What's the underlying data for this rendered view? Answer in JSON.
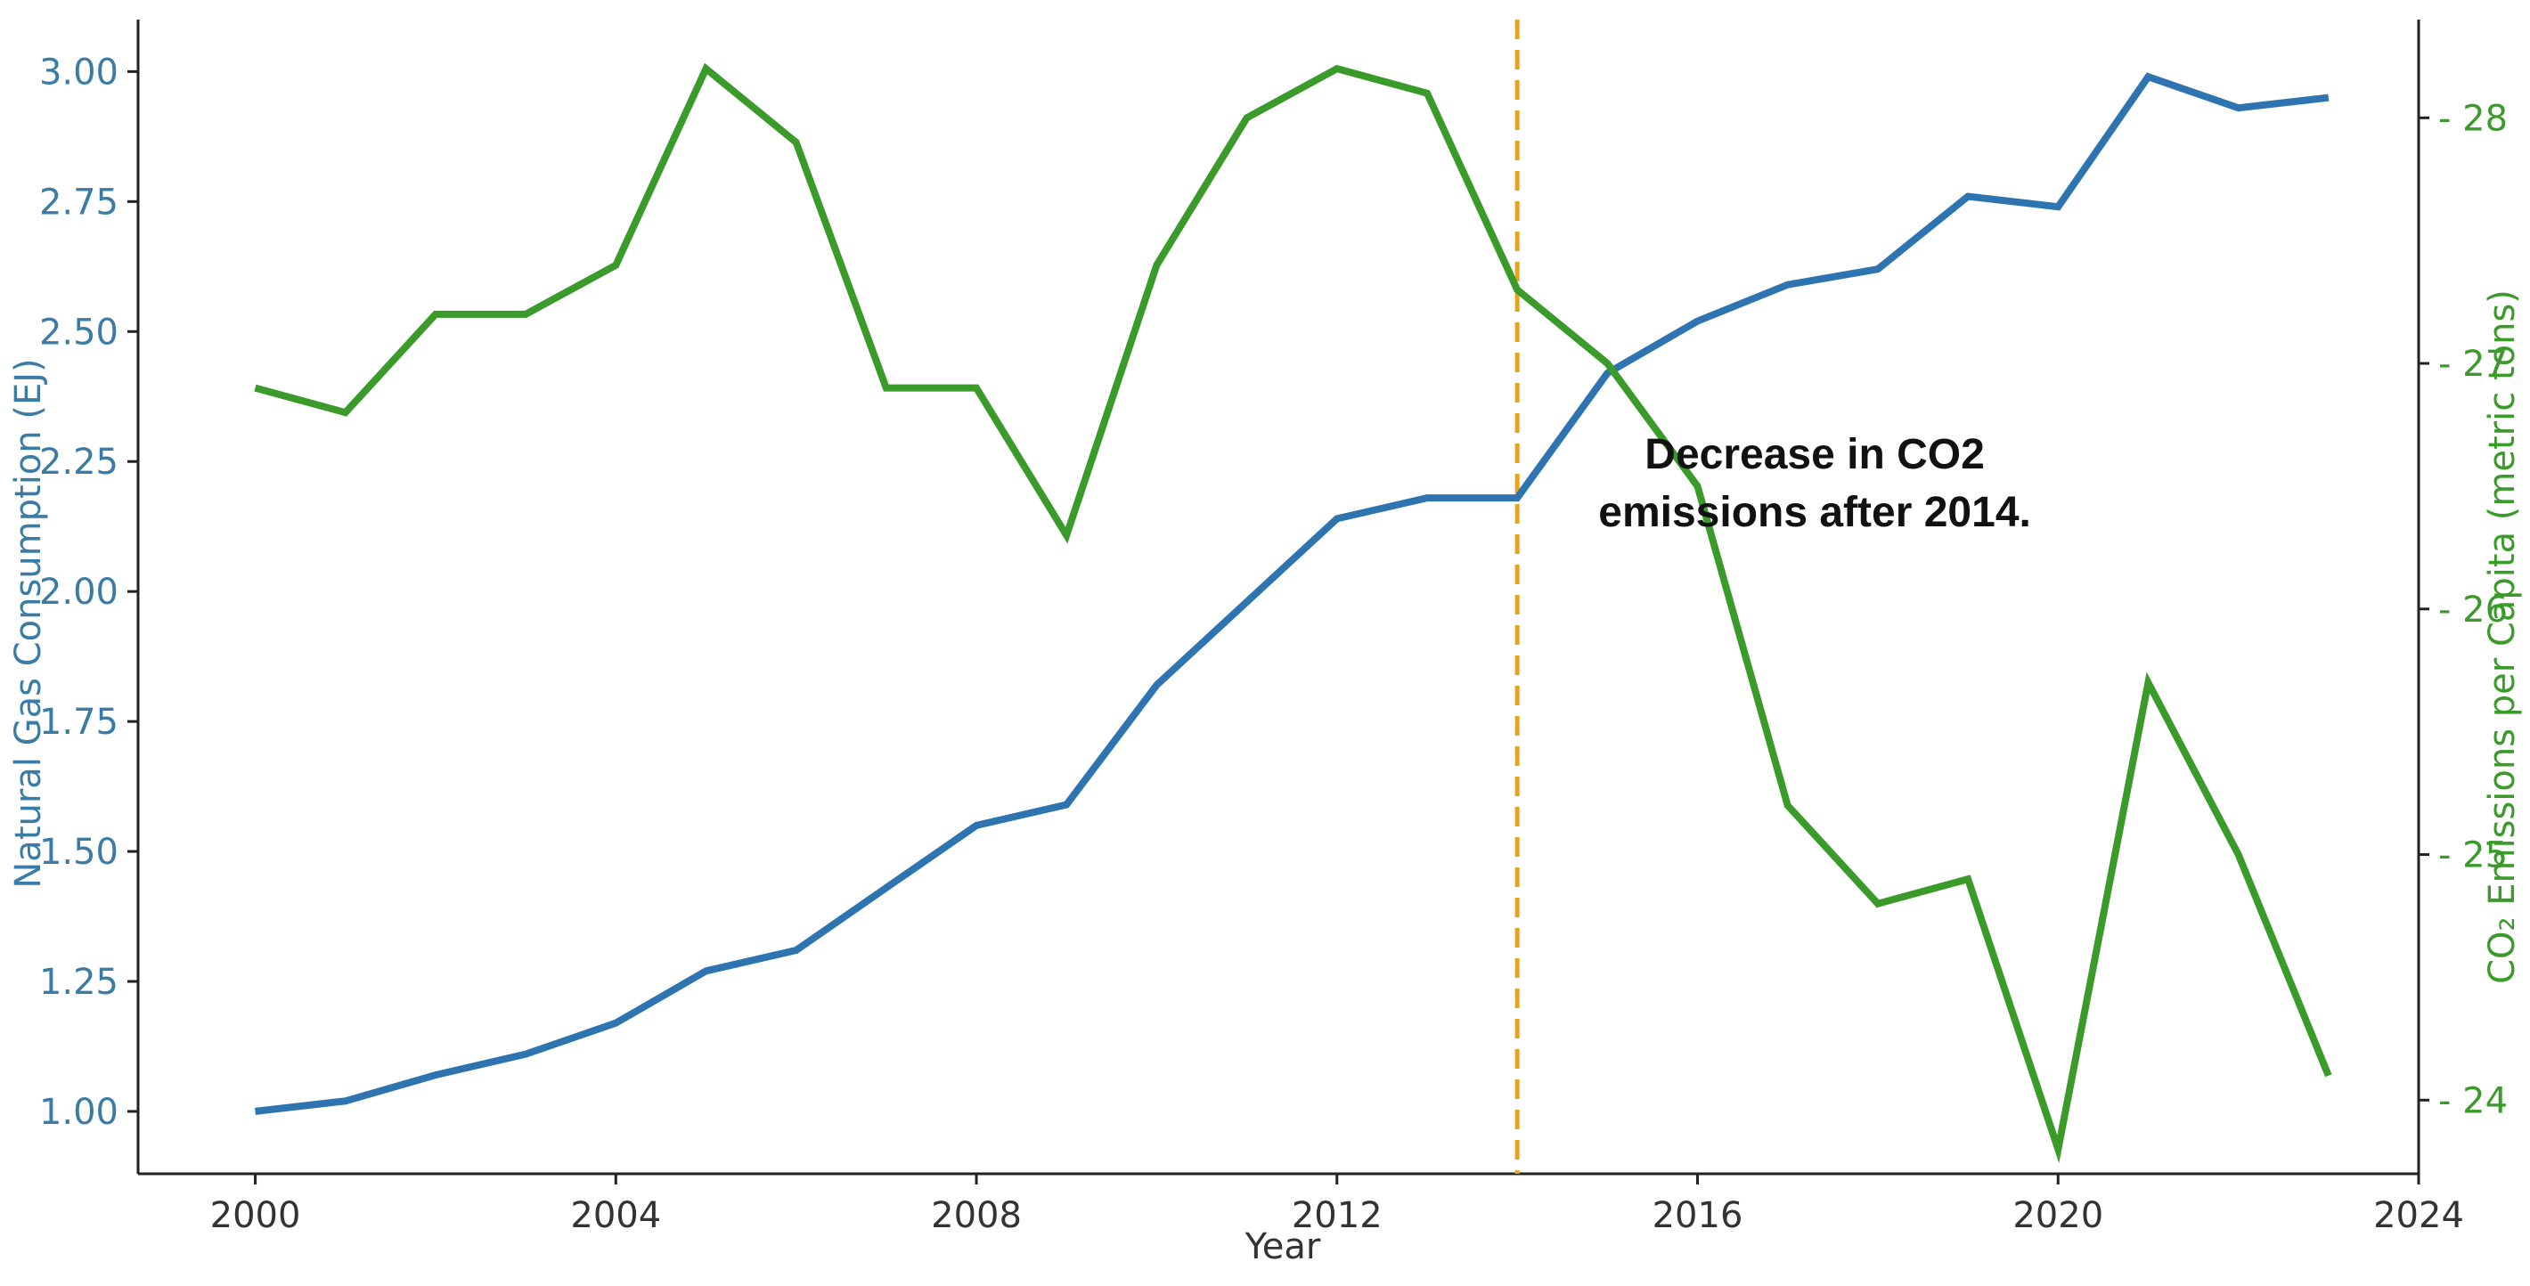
{
  "chart_data": {
    "type": "line",
    "title": "",
    "xlabel": "Year",
    "ylabel_left": "Natural Gas Consumption (EJ)",
    "ylabel_right": "CO₂ Emissions per Capita (metric tons)",
    "x": [
      2000,
      2001,
      2002,
      2003,
      2004,
      2005,
      2006,
      2007,
      2008,
      2009,
      2010,
      2011,
      2012,
      2013,
      2014,
      2015,
      2016,
      2017,
      2018,
      2019,
      2020,
      2021,
      2022,
      2023
    ],
    "xlim": [
      1998.7,
      2024
    ],
    "x_ticks": [
      "2000",
      "2004",
      "2008",
      "2012",
      "2016",
      "2020",
      "2024"
    ],
    "ylim_left": [
      0.88,
      3.1
    ],
    "y_ticks_left": [
      "1.00",
      "1.25",
      "1.50",
      "1.75",
      "2.00",
      "2.25",
      "2.50",
      "2.75",
      "3.00"
    ],
    "ylim_right": [
      23.7,
      28.4
    ],
    "y_ticks_right": [
      "24",
      "25",
      "26",
      "27",
      "28"
    ],
    "series": [
      {
        "axis": "left",
        "color": "#2d74b0",
        "values": [
          1.0,
          1.02,
          1.07,
          1.11,
          1.17,
          1.27,
          1.31,
          1.43,
          1.55,
          1.59,
          1.82,
          1.98,
          2.14,
          2.18,
          2.18,
          2.42,
          2.52,
          2.59,
          2.62,
          2.76,
          2.74,
          2.99,
          2.93,
          2.95
        ]
      },
      {
        "axis": "right",
        "color": "#3a9a2a",
        "values": [
          26.9,
          26.8,
          27.2,
          27.2,
          27.4,
          28.2,
          27.9,
          26.9,
          26.9,
          26.3,
          27.4,
          28.0,
          28.2,
          28.1,
          27.3,
          27.0,
          26.5,
          25.2,
          24.8,
          24.9,
          23.8,
          25.7,
          25.0,
          24.1
        ]
      }
    ],
    "reference_line": {
      "x": 2014,
      "color": "#e8a317",
      "style": "dashed"
    },
    "annotation": {
      "line1": "Decrease in CO2",
      "line2": "emissions after 2014.",
      "x": 2017.3,
      "y_right": 26.5
    },
    "grid": false,
    "legend": "none"
  }
}
